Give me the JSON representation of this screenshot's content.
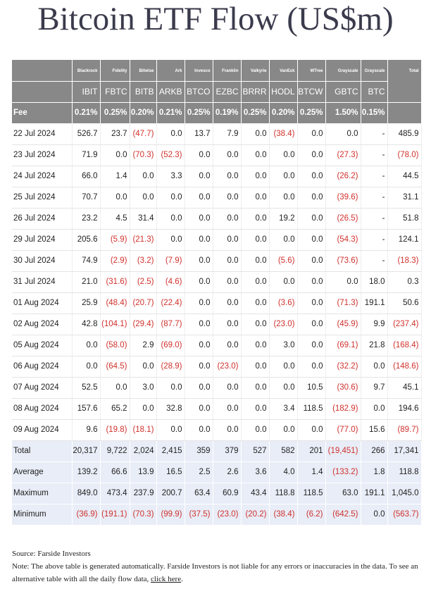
{
  "title": "Bitcoin ETF Flow (US$m)",
  "table": {
    "issuers": [
      "Blackrock",
      "Fidelity",
      "Bitwise",
      "Ark",
      "Invesco",
      "Franklin",
      "Valkyrie",
      "VanEck",
      "WTree",
      "Grayscale",
      "Grayscale"
    ],
    "total_label": "Total",
    "tickers": [
      "IBIT",
      "FBTC",
      "BITB",
      "ARKB",
      "BTCO",
      "EZBC",
      "BRRR",
      "HODL",
      "BTCW",
      "GBTC",
      "BTC"
    ],
    "fee_label": "Fee",
    "fees": [
      "0.21%",
      "0.25%",
      "0.20%",
      "0.21%",
      "0.25%",
      "0.19%",
      "0.25%",
      "0.20%",
      "0.25%",
      "1.50%",
      "0.15%"
    ],
    "rows": [
      [
        "22 Jul 2024",
        "526.7",
        "23.7",
        "(47.7)",
        "0.0",
        "13.7",
        "7.9",
        "0.0",
        "(38.4)",
        "0.0",
        "0.0",
        "-",
        "485.9"
      ],
      [
        "23 Jul 2024",
        "71.9",
        "0.0",
        "(70.3)",
        "(52.3)",
        "0.0",
        "0.0",
        "0.0",
        "0.0",
        "0.0",
        "(27.3)",
        "-",
        "(78.0)"
      ],
      [
        "24 Jul 2024",
        "66.0",
        "1.4",
        "0.0",
        "3.3",
        "0.0",
        "0.0",
        "0.0",
        "0.0",
        "0.0",
        "(26.2)",
        "-",
        "44.5"
      ],
      [
        "25 Jul 2024",
        "70.7",
        "0.0",
        "0.0",
        "0.0",
        "0.0",
        "0.0",
        "0.0",
        "0.0",
        "0.0",
        "(39.6)",
        "-",
        "31.1"
      ],
      [
        "26 Jul 2024",
        "23.2",
        "4.5",
        "31.4",
        "0.0",
        "0.0",
        "0.0",
        "0.0",
        "19.2",
        "0.0",
        "(26.5)",
        "-",
        "51.8"
      ],
      [
        "29 Jul 2024",
        "205.6",
        "(5.9)",
        "(21.3)",
        "0.0",
        "0.0",
        "0.0",
        "0.0",
        "0.0",
        "0.0",
        "(54.3)",
        "-",
        "124.1"
      ],
      [
        "30 Jul 2024",
        "74.9",
        "(2.9)",
        "(3.2)",
        "(7.9)",
        "0.0",
        "0.0",
        "0.0",
        "(5.6)",
        "0.0",
        "(73.6)",
        "-",
        "(18.3)"
      ],
      [
        "31 Jul 2024",
        "21.0",
        "(31.6)",
        "(2.5)",
        "(4.6)",
        "0.0",
        "0.0",
        "0.0",
        "0.0",
        "0.0",
        "0.0",
        "18.0",
        "0.3"
      ],
      [
        "01 Aug 2024",
        "25.9",
        "(48.4)",
        "(20.7)",
        "(22.4)",
        "0.0",
        "0.0",
        "0.0",
        "(3.6)",
        "0.0",
        "(71.3)",
        "191.1",
        "50.6"
      ],
      [
        "02 Aug 2024",
        "42.8",
        "(104.1)",
        "(29.4)",
        "(87.7)",
        "0.0",
        "0.0",
        "0.0",
        "(23.0)",
        "0.0",
        "(45.9)",
        "9.9",
        "(237.4)"
      ],
      [
        "05 Aug 2024",
        "0.0",
        "(58.0)",
        "2.9",
        "(69.0)",
        "0.0",
        "0.0",
        "0.0",
        "3.0",
        "0.0",
        "(69.1)",
        "21.8",
        "(168.4)"
      ],
      [
        "06 Aug 2024",
        "0.0",
        "(64.5)",
        "0.0",
        "(28.9)",
        "0.0",
        "(23.0)",
        "0.0",
        "0.0",
        "0.0",
        "(32.2)",
        "0.0",
        "(148.6)"
      ],
      [
        "07 Aug 2024",
        "52.5",
        "0.0",
        "3.0",
        "0.0",
        "0.0",
        "0.0",
        "0.0",
        "0.0",
        "10.5",
        "(30.6)",
        "9.7",
        "45.1"
      ],
      [
        "08 Aug 2024",
        "157.6",
        "65.2",
        "0.0",
        "32.8",
        "0.0",
        "0.0",
        "0.0",
        "3.4",
        "118.5",
        "(182.9)",
        "0.0",
        "194.6"
      ],
      [
        "09 Aug 2024",
        "9.6",
        "(19.8)",
        "(18.1)",
        "0.0",
        "0.0",
        "0.0",
        "0.0",
        "0.0",
        "0.0",
        "(77.0)",
        "15.6",
        "(89.7)"
      ]
    ],
    "summary": [
      [
        "Total",
        "20,317",
        "9,722",
        "2,024",
        "2,415",
        "359",
        "379",
        "527",
        "582",
        "201",
        "(19,451)",
        "266",
        "17,341"
      ],
      [
        "Average",
        "139.2",
        "66.6",
        "13.9",
        "16.5",
        "2.5",
        "2.6",
        "3.6",
        "4.0",
        "1.4",
        "(133.2)",
        "1.8",
        "118.8"
      ],
      [
        "Maximum",
        "849.0",
        "473.4",
        "237.9",
        "200.7",
        "63.4",
        "60.9",
        "43.4",
        "118.8",
        "118.5",
        "63.0",
        "191.1",
        "1,045.0"
      ],
      [
        "Minimum",
        "(36.9)",
        "(191.1)",
        "(70.3)",
        "(99.9)",
        "(37.5)",
        "(23.0)",
        "(20.2)",
        "(38.4)",
        "(6.2)",
        "(642.5)",
        "0.0",
        "(563.7)"
      ]
    ]
  },
  "footer": {
    "source": "Source: Farside Investors",
    "note": "Note: The above table is generated automatically. Farside Investors is not liable for any errors or inaccuracies in the data. To see an alternative table with all the daily flow data,",
    "link": "click here",
    "end": "."
  }
}
